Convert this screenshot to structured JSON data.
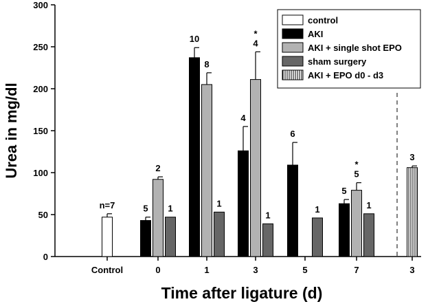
{
  "chart_data": {
    "type": "bar",
    "xlabel": "Time after ligature (d)",
    "ylabel": "Urea in mg/dl",
    "ylim": [
      0,
      300
    ],
    "yticks": [
      0,
      50,
      100,
      150,
      200,
      250,
      300
    ],
    "grid": false,
    "legend_position": "top-right",
    "categories": [
      "Control",
      "0",
      "1",
      "3",
      "5",
      "7",
      "3"
    ],
    "series": [
      {
        "key": "control",
        "name": "control",
        "fill": "#ffffff",
        "pattern": "none"
      },
      {
        "key": "aki",
        "name": "AKI",
        "fill": "#000000",
        "pattern": "none"
      },
      {
        "key": "aki_epo_single",
        "name": "AKI + single shot EPO",
        "fill": "#b2b2b2",
        "pattern": "none"
      },
      {
        "key": "sham",
        "name": "sham surgery",
        "fill": "#666666",
        "pattern": "none"
      },
      {
        "key": "aki_epo_d0_d3",
        "name": "AKI + EPO d0 - d3",
        "fill": "#ffffff",
        "pattern": "vertical-lines"
      }
    ],
    "bars": [
      {
        "category": "Control",
        "series": "control",
        "value": 47,
        "error": 4,
        "n_label": "n=7",
        "star": ""
      },
      {
        "category": "0",
        "series": "aki",
        "value": 43,
        "error": 4,
        "n_label": "5",
        "star": ""
      },
      {
        "category": "0",
        "series": "aki_epo_single",
        "value": 92,
        "error": 3,
        "n_label": "2",
        "star": ""
      },
      {
        "category": "0",
        "series": "sham",
        "value": 47,
        "error": 0,
        "n_label": "1",
        "star": ""
      },
      {
        "category": "1",
        "series": "aki",
        "value": 237,
        "error": 12,
        "n_label": "10",
        "star": ""
      },
      {
        "category": "1",
        "series": "aki_epo_single",
        "value": 205,
        "error": 14,
        "n_label": "8",
        "star": ""
      },
      {
        "category": "1",
        "series": "sham",
        "value": 53,
        "error": 0,
        "n_label": "1",
        "star": ""
      },
      {
        "category": "3",
        "series": "aki",
        "value": 126,
        "error": 29,
        "n_label": "4",
        "star": ""
      },
      {
        "category": "3",
        "series": "aki_epo_single",
        "value": 211,
        "error": 33,
        "n_label": "4",
        "star": "*"
      },
      {
        "category": "3",
        "series": "sham",
        "value": 39,
        "error": 0,
        "n_label": "1",
        "star": ""
      },
      {
        "category": "5",
        "series": "aki",
        "value": 109,
        "error": 27,
        "n_label": "6",
        "star": ""
      },
      {
        "category": "5",
        "series": "sham",
        "value": 46,
        "error": 0,
        "n_label": "1",
        "star": ""
      },
      {
        "category": "7",
        "series": "aki",
        "value": 63,
        "error": 5,
        "n_label": "5",
        "star": ""
      },
      {
        "category": "7",
        "series": "aki_epo_single",
        "value": 79,
        "error": 9,
        "n_label": "5",
        "star": "*"
      },
      {
        "category": "7",
        "series": "sham",
        "value": 51,
        "error": 0,
        "n_label": "1",
        "star": ""
      },
      {
        "category": "3",
        "series": "aki_epo_d0_d3",
        "value": 106,
        "error": 2,
        "n_label": "3",
        "star": ""
      }
    ]
  }
}
